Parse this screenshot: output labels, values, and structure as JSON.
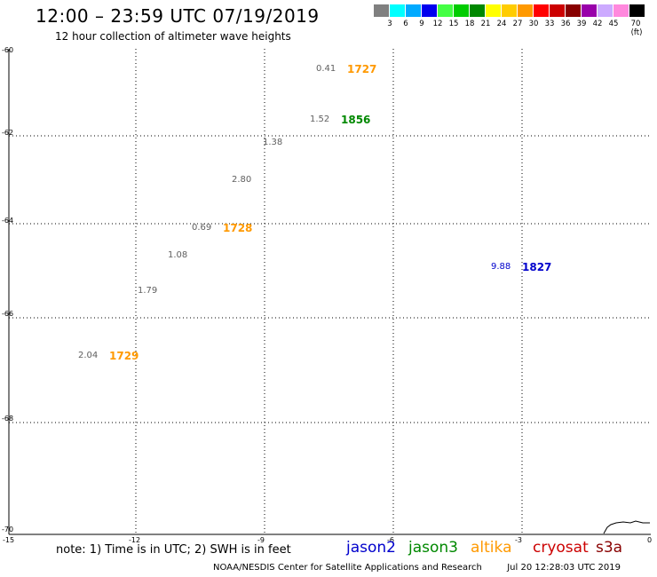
{
  "header": {
    "title": "12:00 – 23:59 UTC 07/19/2019",
    "subtitle": "12 hour collection of altimeter wave heights"
  },
  "legend": {
    "colors": [
      "#808080",
      "#00ffff",
      "#00aaff",
      "#0000ee",
      "#44ff44",
      "#00cc00",
      "#008800",
      "#ffff00",
      "#ffcc00",
      "#ff9900",
      "#ff0000",
      "#cc0000",
      "#880000",
      "#9900aa",
      "#ccaaff",
      "#ff88dd",
      "#000000"
    ],
    "labels": [
      "3",
      "6",
      "9",
      "12",
      "15",
      "18",
      "21",
      "24",
      "27",
      "30",
      "33",
      "36",
      "39",
      "42",
      "45",
      "70 (ft)"
    ]
  },
  "axes": {
    "lat_labels": [
      "-60",
      "-62",
      "-64",
      "-66",
      "-68",
      "-70"
    ],
    "lon_labels": [
      "-15",
      "-12",
      "-9",
      "-6",
      "-3",
      "0"
    ]
  },
  "observations": [
    {
      "swh": "0.41",
      "time": "1727",
      "time_color": "#ff9900"
    },
    {
      "swh": "1.52",
      "time": "1856",
      "time_color": "#008800"
    },
    {
      "swh": "1.38",
      "time": ""
    },
    {
      "swh": "2.80",
      "time": ""
    },
    {
      "swh": "0.69",
      "time": "1728",
      "time_color": "#ff9900"
    },
    {
      "swh": "1.08",
      "time": ""
    },
    {
      "swh": "9.88",
      "time": "1827",
      "time_color": "#0000cc",
      "swh_color": "#0000cc"
    },
    {
      "swh": "1.79",
      "time": ""
    },
    {
      "swh": "2.04",
      "time": "1729",
      "time_color": "#ff9900"
    }
  ],
  "note": "note:  1) Time is in UTC;  2) SWH is in feet",
  "satellites": [
    {
      "name": "jason2",
      "color": "#0000cc"
    },
    {
      "name": "jason3",
      "color": "#008800"
    },
    {
      "name": "altika",
      "color": "#ff9900"
    },
    {
      "name": "cryosat",
      "color": "#cc0000"
    },
    {
      "name": "s3a",
      "color": "#880000"
    }
  ],
  "footer": {
    "credit": "NOAA/NESDIS Center for Satellite Applications and Research",
    "timestamp": "Jul 20 12:28:03 UTC 2019"
  }
}
